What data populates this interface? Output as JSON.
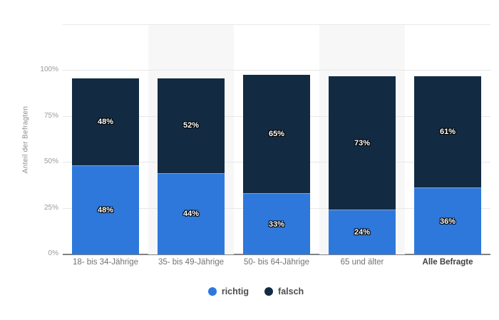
{
  "page": {
    "background": "#ffffff"
  },
  "y_axis": {
    "title": "Anteil der Befragten"
  },
  "legend": {
    "items": [
      {
        "label": "richtig",
        "color": "#2e78dc"
      },
      {
        "label": "falsch",
        "color": "#132b42"
      }
    ]
  },
  "colors": {
    "band": "#f7f7f7",
    "gridline": "#e7e7e7",
    "baseline": "#828282",
    "tick_label": "#999999",
    "category_label": "#737373",
    "category_label_strong": "#404040",
    "value_label": "#ffffff",
    "legend_text": "#4d4d4d"
  },
  "chart_data": {
    "type": "bar",
    "stacked": true,
    "title": "",
    "categories": [
      "18- bis 34-Jährige",
      "35- bis 49-Jährige",
      "50- bis 64-Jährige",
      "65 und älter",
      "Alle Befragte"
    ],
    "series": [
      {
        "name": "richtig",
        "color": "#2e78dc",
        "values": [
          48,
          44,
          33,
          24,
          36
        ]
      },
      {
        "name": "falsch",
        "color": "#132b42",
        "values": [
          48,
          52,
          65,
          73,
          61
        ]
      }
    ],
    "value_suffix": "%",
    "xlabel": "",
    "ylabel": "Anteil der Befragten",
    "ylim": [
      0,
      125
    ],
    "yticks": [
      0,
      25,
      50,
      75,
      100
    ],
    "ytick_labels": [
      "0%",
      "25%",
      "50%",
      "75%",
      "100%"
    ],
    "grid": true,
    "legend_position": "bottom",
    "background_band_columns": [
      1,
      3
    ],
    "bold_categories": [
      "Alle Befragte"
    ]
  }
}
